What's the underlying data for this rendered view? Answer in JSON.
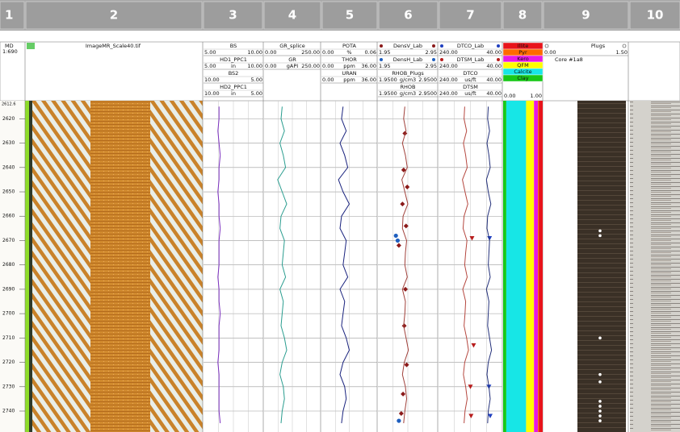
{
  "chart_data": {
    "type": "well-log",
    "track_numbers": [
      1,
      2,
      3,
      4,
      5,
      6,
      7,
      8,
      9,
      10
    ],
    "depth_label": "MD",
    "scale": "1:690",
    "image_name": "ImageMR_Scale40.tif",
    "ylim": [
      {
        "value": 2612.6,
        "label": "2612.6"
      },
      2748.6
    ],
    "yticks": [
      2620,
      2630,
      2640,
      2650,
      2660,
      2670,
      2680,
      2690,
      2700,
      2710,
      2720,
      2730,
      2740
    ],
    "grid": true,
    "depths": [
      2615,
      2620,
      2625,
      2630,
      2635,
      2640,
      2645,
      2650,
      2655,
      2660,
      2665,
      2670,
      2675,
      2680,
      2685,
      2690,
      2695,
      2700,
      2705,
      2710,
      2715,
      2720,
      2725,
      2730,
      2735,
      2740,
      2745
    ],
    "tracks": [
      {
        "curves": [
          {
            "name": "BS",
            "color": "#6a3d9a",
            "left": {
              "value": 5,
              "label": "5.00"
            },
            "right": {
              "value": 10,
              "label": "10.00"
            }
          },
          {
            "name": "HD1_PPC1",
            "color": "#7b2fbf",
            "unit": "in",
            "left": {
              "value": 5,
              "label": "5.00"
            },
            "right": {
              "value": 10,
              "label": "10.00"
            },
            "values": [
              6.3,
              6.3,
              6.2,
              6.3,
              6.4,
              6.3,
              6.3,
              6.2,
              6.3,
              6.3,
              6.4,
              6.3,
              6.3,
              6.3,
              6.2,
              6.3,
              6.3,
              6.4,
              6.3,
              6.3,
              6.3,
              6.2,
              6.3,
              6.3,
              6.3,
              6.3,
              6.4
            ]
          },
          {
            "name": "BS2",
            "color": "#1ab3c9",
            "left": {
              "value": 10,
              "label": "10.00"
            },
            "right": {
              "value": 5,
              "label": "5.00"
            }
          },
          {
            "name": "HD2_PPC1",
            "color": "#1f78b4",
            "unit": "in",
            "left": {
              "value": 10,
              "label": "10.00"
            },
            "right": {
              "value": 5,
              "label": "5.00"
            }
          }
        ]
      },
      {
        "curves": [
          {
            "name": "GR_splice",
            "color": "#4caf50",
            "left": {
              "value": 0,
              "label": "0.00"
            },
            "right": {
              "value": 250,
              "label": "250.00"
            }
          },
          {
            "name": "GR",
            "color": "#2a9d8f",
            "unit": "gAPI",
            "left": {
              "value": 0,
              "label": "0.00"
            },
            "right": {
              "value": 250,
              "label": "250.00"
            },
            "values": [
              80,
              75,
              90,
              70,
              85,
              95,
              60,
              80,
              100,
              75,
              70,
              90,
              85,
              80,
              95,
              70,
              85,
              80,
              75,
              90,
              100,
              80,
              70,
              85,
              90,
              80,
              75
            ]
          }
        ]
      },
      {
        "curves": [
          {
            "name": "POTA",
            "color": "#2e7d32",
            "unit": "%",
            "left": {
              "value": 0,
              "label": "0.00"
            },
            "right": {
              "value": 0.06,
              "label": "0.06"
            }
          },
          {
            "name": "THOR",
            "color": "#1a237e",
            "unit": "ppm",
            "left": {
              "value": 0,
              "label": "0.00"
            },
            "right": {
              "value": 36,
              "label": "36.00"
            },
            "values": [
              14,
              13,
              16,
              12,
              15,
              17,
              11,
              14,
              18,
              13,
              12,
              16,
              15,
              14,
              17,
              12,
              15,
              14,
              13,
              16,
              18,
              14,
              12,
              15,
              16,
              14,
              13
            ]
          },
          {
            "name": "URAN",
            "color": "#66bb6a",
            "unit": "ppm",
            "left": {
              "value": 0,
              "label": "0.00"
            },
            "right": {
              "value": 36,
              "label": "36.00"
            }
          }
        ]
      },
      {
        "curves": [
          {
            "name": "DensV_Lab",
            "color": "#8b1a1a",
            "marker": "diamond",
            "left": {
              "value": 1.95,
              "label": "1.95"
            },
            "right": {
              "value": 2.95,
              "label": "2.95"
            },
            "depths": [
              2626,
              2641,
              2648,
              2655,
              2664,
              2672,
              2690,
              2705,
              2721,
              2733,
              2741
            ],
            "values": [
              2.4,
              2.38,
              2.44,
              2.36,
              2.42,
              2.3,
              2.41,
              2.39,
              2.43,
              2.37,
              2.34
            ]
          },
          {
            "name": "DensH_Lab",
            "color": "#1f5fbf",
            "marker": "circle",
            "left": {
              "value": 1.95,
              "label": "1.95"
            },
            "right": {
              "value": 2.95,
              "label": "2.95"
            },
            "depths": [
              2668,
              2670,
              2744
            ],
            "values": [
              2.25,
              2.28,
              2.3
            ]
          },
          {
            "name": "RHOB_Plugs",
            "color": "#c62828",
            "unit": "g/cm3",
            "left": {
              "value": 1.95,
              "label": "1.9500"
            },
            "right": {
              "value": 2.95,
              "label": "2.9500"
            }
          },
          {
            "name": "RHOB",
            "color": "#a0403a",
            "unit": "g/cm3",
            "left": {
              "value": 1.95,
              "label": "1.9500"
            },
            "right": {
              "value": 2.95,
              "label": "2.9500"
            },
            "values": [
              2.4,
              2.38,
              2.42,
              2.36,
              2.41,
              2.44,
              2.35,
              2.4,
              2.45,
              2.37,
              2.36,
              2.43,
              2.41,
              2.4,
              2.44,
              2.36,
              2.41,
              2.4,
              2.38,
              2.42,
              2.46,
              2.39,
              2.36,
              2.41,
              2.43,
              2.4,
              2.38
            ]
          }
        ]
      },
      {
        "curves": [
          {
            "name": "DTCO_Lab",
            "color": "#1f3fbf",
            "marker": "triangle",
            "left": {
              "value": 240,
              "label": "240.00"
            },
            "right": {
              "value": 40,
              "label": "40.00"
            },
            "depths": [
              2669,
              2730,
              2742
            ],
            "values": [
              80,
              82,
              78
            ]
          },
          {
            "name": "DTSM_Lab",
            "color": "#b71c1c",
            "marker": "triangle",
            "left": {
              "value": 240,
              "label": "240.00"
            },
            "right": {
              "value": 40,
              "label": "40.00"
            },
            "depths": [
              2669,
              2713,
              2730,
              2742
            ],
            "values": [
              135,
              130,
              140,
              138
            ]
          },
          {
            "name": "DTCO",
            "color": "#b5473f",
            "unit": "us/ft",
            "left": {
              "value": 240,
              "label": "240.00"
            },
            "right": {
              "value": 40,
              "label": "40.00"
            },
            "values": [
              158,
              160,
              152,
              162,
              155,
              150,
              165,
              157,
              148,
              160,
              163,
              151,
              155,
              158,
              150,
              164,
              155,
              157,
              160,
              152,
              146,
              158,
              162,
              155,
              150,
              157,
              160
            ]
          },
          {
            "name": "DTSM",
            "color": "#23307a",
            "unit": "us/ft",
            "left": {
              "value": 240,
              "label": "240.00"
            },
            "right": {
              "value": 40,
              "label": "40.00"
            },
            "values": [
              84,
              86,
              80,
              88,
              82,
              78,
              90,
              84,
              76,
              86,
              88,
              80,
              82,
              84,
              78,
              90,
              82,
              84,
              86,
              80,
              74,
              84,
              88,
              82,
              78,
              84,
              86
            ]
          }
        ]
      }
    ],
    "lithology": {
      "left": {
        "value": 0,
        "label": "0.00"
      },
      "right": {
        "value": 1,
        "label": "1.00"
      },
      "components": [
        {
          "name": "Illite",
          "color": "#e8141b",
          "fraction": 0.1
        },
        {
          "name": "Pyr",
          "color": "#ff6a00",
          "fraction": 0.02
        },
        {
          "name": "Kero",
          "color": "#e619e6",
          "fraction": 0.1
        },
        {
          "name": "QFM",
          "color": "#ffff00",
          "fraction": 0.2
        },
        {
          "name": "Calcite",
          "color": "#17e6e6",
          "fraction": 0.5
        },
        {
          "name": "Clay",
          "color": "#19c819",
          "fraction": 0.08
        }
      ]
    },
    "plugs": {
      "name": "Plugs",
      "color": "#ffffff",
      "left": {
        "value": 0,
        "label": "0.00"
      },
      "right": {
        "value": 1.5,
        "label": "1.50"
      },
      "core": "Core #1a8",
      "depths": [
        2666,
        2668,
        2710,
        2725,
        2728,
        2736,
        2738,
        2740,
        2742,
        2744
      ],
      "values": [
        1,
        1,
        1,
        1,
        1,
        1,
        1,
        1,
        1,
        1
      ]
    }
  }
}
